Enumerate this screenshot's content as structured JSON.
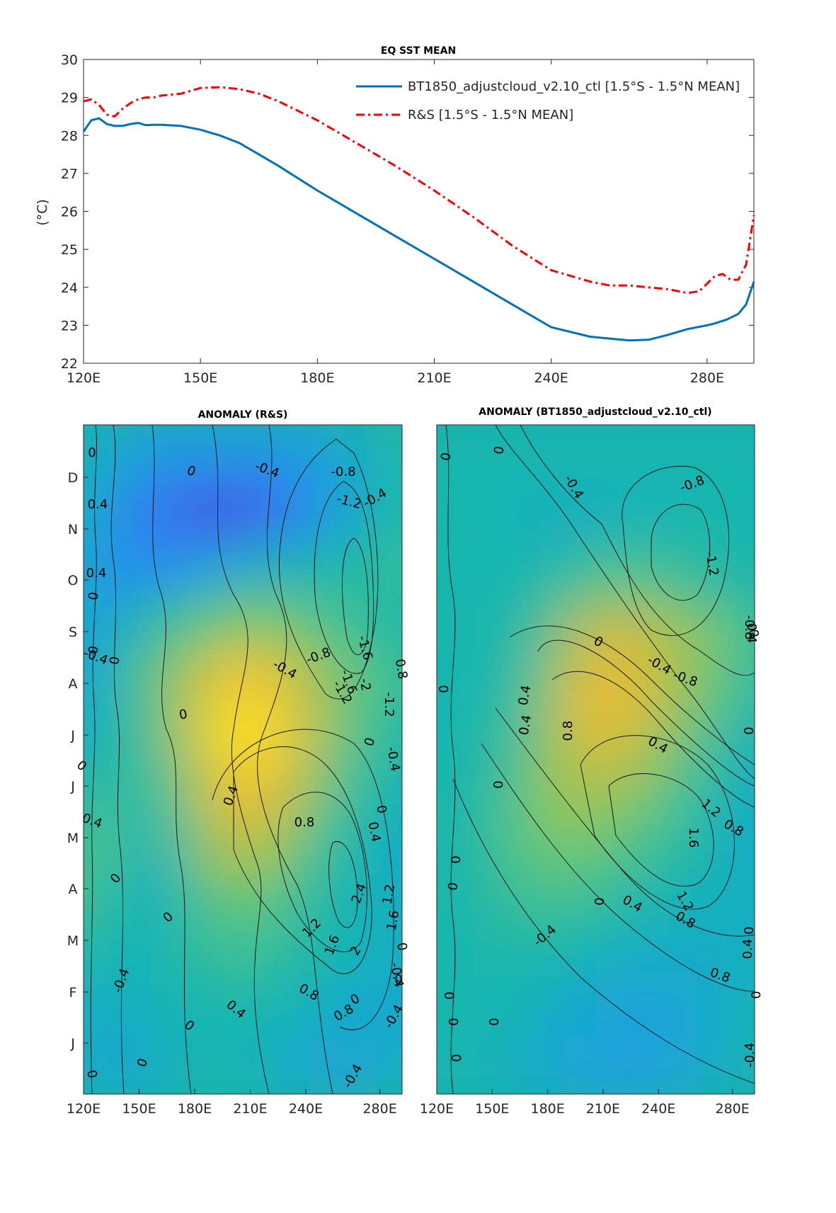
{
  "chart_data": [
    {
      "type": "line",
      "title": "EQ SST MEAN",
      "ylabel": "(°C)",
      "xlim": [
        120,
        292
      ],
      "ylim": [
        22,
        30
      ],
      "xticks": [
        120,
        150,
        180,
        210,
        240,
        280
      ],
      "xtick_labels": [
        "120E",
        "150E",
        "180E",
        "210E",
        "240E",
        "280E"
      ],
      "yticks": [
        22,
        23,
        24,
        25,
        26,
        27,
        28,
        29,
        30
      ],
      "legend_position": "top-right",
      "series": [
        {
          "name": "BT1850_adjustcloud_v2.10_ctl [1.5°S - 1.5°N MEAN]",
          "color": "#0072bd",
          "style": "solid",
          "x": [
            120,
            122,
            124,
            126,
            128,
            130,
            132,
            134,
            136,
            138,
            140,
            145,
            150,
            155,
            160,
            165,
            170,
            180,
            190,
            200,
            210,
            220,
            230,
            240,
            250,
            255,
            260,
            265,
            270,
            275,
            280,
            282,
            285,
            288,
            290,
            292
          ],
          "y": [
            28.1,
            28.4,
            28.45,
            28.3,
            28.25,
            28.25,
            28.3,
            28.33,
            28.27,
            28.28,
            28.28,
            28.25,
            28.15,
            28.0,
            27.8,
            27.5,
            27.2,
            26.55,
            25.95,
            25.35,
            24.75,
            24.15,
            23.55,
            22.95,
            22.7,
            22.65,
            22.6,
            22.62,
            22.75,
            22.9,
            23.0,
            23.05,
            23.15,
            23.3,
            23.55,
            24.15
          ]
        },
        {
          "name": "R&S [1.5°S - 1.5°N MEAN]",
          "color": "#ff0000",
          "style": "dashdot",
          "x": [
            120,
            122,
            124,
            126,
            128,
            130,
            132,
            134,
            136,
            138,
            140,
            145,
            150,
            155,
            160,
            165,
            170,
            180,
            190,
            200,
            210,
            220,
            230,
            240,
            250,
            255,
            260,
            265,
            270,
            275,
            278,
            280,
            282,
            284,
            286,
            288,
            290,
            292
          ],
          "y": [
            28.9,
            28.95,
            28.8,
            28.55,
            28.5,
            28.7,
            28.85,
            28.95,
            29.0,
            29.0,
            29.05,
            29.1,
            29.25,
            29.27,
            29.22,
            29.1,
            28.9,
            28.4,
            27.8,
            27.2,
            26.55,
            25.85,
            25.1,
            24.45,
            24.15,
            24.05,
            24.05,
            24.0,
            23.95,
            23.85,
            23.9,
            24.1,
            24.3,
            24.35,
            24.2,
            24.2,
            24.6,
            25.9
          ]
        }
      ]
    },
    {
      "type": "heatmap",
      "title": "ANOMALY (R&S)",
      "xlim": [
        120,
        292
      ],
      "xtick_labels": [
        "120E",
        "150E",
        "180E",
        "210E",
        "240E",
        "280E"
      ],
      "ytick_labels": [
        "J",
        "F",
        "M",
        "A",
        "M",
        "J",
        "J",
        "A",
        "S",
        "O",
        "N",
        "D"
      ],
      "contour_labels": [
        "0",
        "0.4",
        "0",
        "-0.4",
        "-0.8",
        "-1.2",
        "-0.4",
        "0.4",
        "0",
        "0",
        "-0.4",
        "0",
        "-1.6",
        "-2",
        "-0.8",
        "-0.4",
        "-1.6",
        "-1.2",
        "-1.2",
        "0.8",
        "0",
        "0",
        "0",
        "-0.4",
        "0.4",
        "0.4",
        "0",
        "0.8",
        "0.4",
        "0",
        "2.4",
        "1.2",
        "0",
        "1.2",
        "1.6",
        "1.6",
        "2",
        "-0.4",
        "0",
        "0.4",
        "0.8",
        "-0.4",
        "0.8",
        "0",
        "-0.4",
        "0",
        "0",
        "0",
        "-0.4",
        "0"
      ],
      "cells": [
        [
          0.0,
          -0.3,
          -0.4,
          -0.2,
          0.0,
          0.0,
          -0.1,
          -0.3,
          -0.4,
          -0.4,
          -0.2,
          0.0
        ],
        [
          0.0,
          -0.3,
          -0.2,
          -0.1,
          0.0,
          0.0,
          0.0,
          -0.1,
          -0.2,
          -0.3,
          -0.4,
          -0.2
        ],
        [
          0.2,
          0.0,
          -0.1,
          0.0,
          0.1,
          0.3,
          0.3,
          0.1,
          0.0,
          -0.1,
          -0.2,
          -0.2
        ],
        [
          0.4,
          0.3,
          0.0,
          -0.2,
          0.3,
          0.6,
          0.6,
          0.3,
          0.0,
          0.0,
          -0.2,
          -0.3
        ],
        [
          0.2,
          0.5,
          0.2,
          -0.2,
          0.6,
          1.2,
          1.2,
          0.7,
          0.2,
          0.0,
          -0.2,
          -0.3
        ],
        [
          -0.2,
          0.3,
          0.1,
          0.2,
          0.9,
          1.7,
          1.8,
          1.2,
          0.5,
          0.2,
          0.0,
          -0.2
        ],
        [
          -0.4,
          0.0,
          0.0,
          0.5,
          1.3,
          2.3,
          2.4,
          1.6,
          0.8,
          0.4,
          0.1,
          0.0
        ],
        [
          -0.4,
          -0.4,
          0.2,
          0.6,
          1.1,
          1.8,
          1.9,
          1.3,
          0.8,
          0.5,
          0.3,
          0.1
        ],
        [
          -0.2,
          -0.6,
          -0.2,
          0.2,
          0.4,
          0.7,
          0.8,
          0.6,
          0.4,
          0.2,
          0.1,
          0.0
        ],
        [
          0.0,
          -0.6,
          -0.8,
          -0.8,
          -0.6,
          -0.4,
          -0.2,
          -0.1,
          0.0,
          0.1,
          0.2,
          0.3
        ],
        [
          0.0,
          -0.3,
          -0.8,
          -1.2,
          -1.4,
          -1.6,
          -1.4,
          -1.0,
          -0.6,
          -0.2,
          0.0,
          0.2
        ],
        [
          0.0,
          -0.2,
          -0.4,
          -0.6,
          -0.6,
          -0.6,
          -0.6,
          -0.6,
          -0.4,
          -0.2,
          0.0,
          0.2
        ]
      ]
    },
    {
      "type": "heatmap",
      "title": "ANOMALY (BT1850_adjustcloud_v2.10_ctl)",
      "xlim": [
        120,
        292
      ],
      "xtick_labels": [
        "120E",
        "150E",
        "180E",
        "210E",
        "240E",
        "280E"
      ],
      "ytick_labels": [
        "J",
        "F",
        "M",
        "A",
        "M",
        "J",
        "J",
        "A",
        "S",
        "O",
        "N",
        "D"
      ],
      "contour_labels": [
        "0",
        "0",
        "-0.4",
        "-0.8",
        "-1.2",
        "0",
        "0.4",
        "0",
        "0",
        "-0.4",
        "-0.8",
        "0.4",
        "0.8",
        "0.4",
        "0",
        "0",
        "1.2",
        "0.8",
        "1.6",
        "0",
        "1.2",
        "0.4",
        "0.8",
        "0",
        "0",
        "0.8",
        "-0.4",
        "0.4",
        "0",
        "0",
        "0",
        "0",
        "0",
        "-0.4",
        "-0.8",
        "0.4",
        "0"
      ],
      "cells": [
        [
          0.0,
          0.0,
          0.0,
          -0.2,
          -0.3,
          -0.4,
          -0.5,
          -0.5,
          -0.4,
          -0.2,
          -0.1,
          0.0
        ],
        [
          0.0,
          0.0,
          0.0,
          0.0,
          -0.2,
          -0.3,
          -0.4,
          -0.4,
          -0.4,
          -0.3,
          -0.1,
          0.0
        ],
        [
          0.0,
          0.0,
          0.0,
          0.1,
          0.1,
          0.0,
          -0.1,
          -0.2,
          -0.2,
          -0.2,
          -0.2,
          -0.1
        ],
        [
          0.0,
          0.0,
          0.1,
          0.3,
          0.5,
          0.4,
          0.3,
          0.1,
          0.0,
          -0.1,
          -0.2,
          -0.2
        ],
        [
          0.0,
          0.0,
          0.1,
          0.4,
          0.8,
          0.9,
          0.7,
          0.5,
          0.2,
          0.0,
          -0.2,
          -0.3
        ],
        [
          0.0,
          0.0,
          0.0,
          0.3,
          0.8,
          1.3,
          1.3,
          1.0,
          0.5,
          0.2,
          -0.1,
          -0.3
        ],
        [
          0.0,
          0.0,
          0.0,
          0.1,
          0.7,
          1.6,
          1.8,
          1.4,
          0.9,
          0.5,
          0.2,
          -0.1
        ],
        [
          0.0,
          0.0,
          0.0,
          0.0,
          0.4,
          1.2,
          1.5,
          1.3,
          1.0,
          0.7,
          0.4,
          0.1
        ],
        [
          0.0,
          0.0,
          0.0,
          0.0,
          0.0,
          0.3,
          0.5,
          0.4,
          0.3,
          0.1,
          0.0,
          0.0
        ],
        [
          0.0,
          0.0,
          0.0,
          0.0,
          -0.2,
          -0.2,
          -0.1,
          -0.1,
          0.0,
          0.0,
          0.0,
          0.0
        ],
        [
          0.0,
          0.0,
          0.0,
          0.0,
          0.0,
          0.0,
          0.0,
          0.0,
          0.0,
          0.0,
          0.0,
          0.0
        ]
      ]
    }
  ]
}
